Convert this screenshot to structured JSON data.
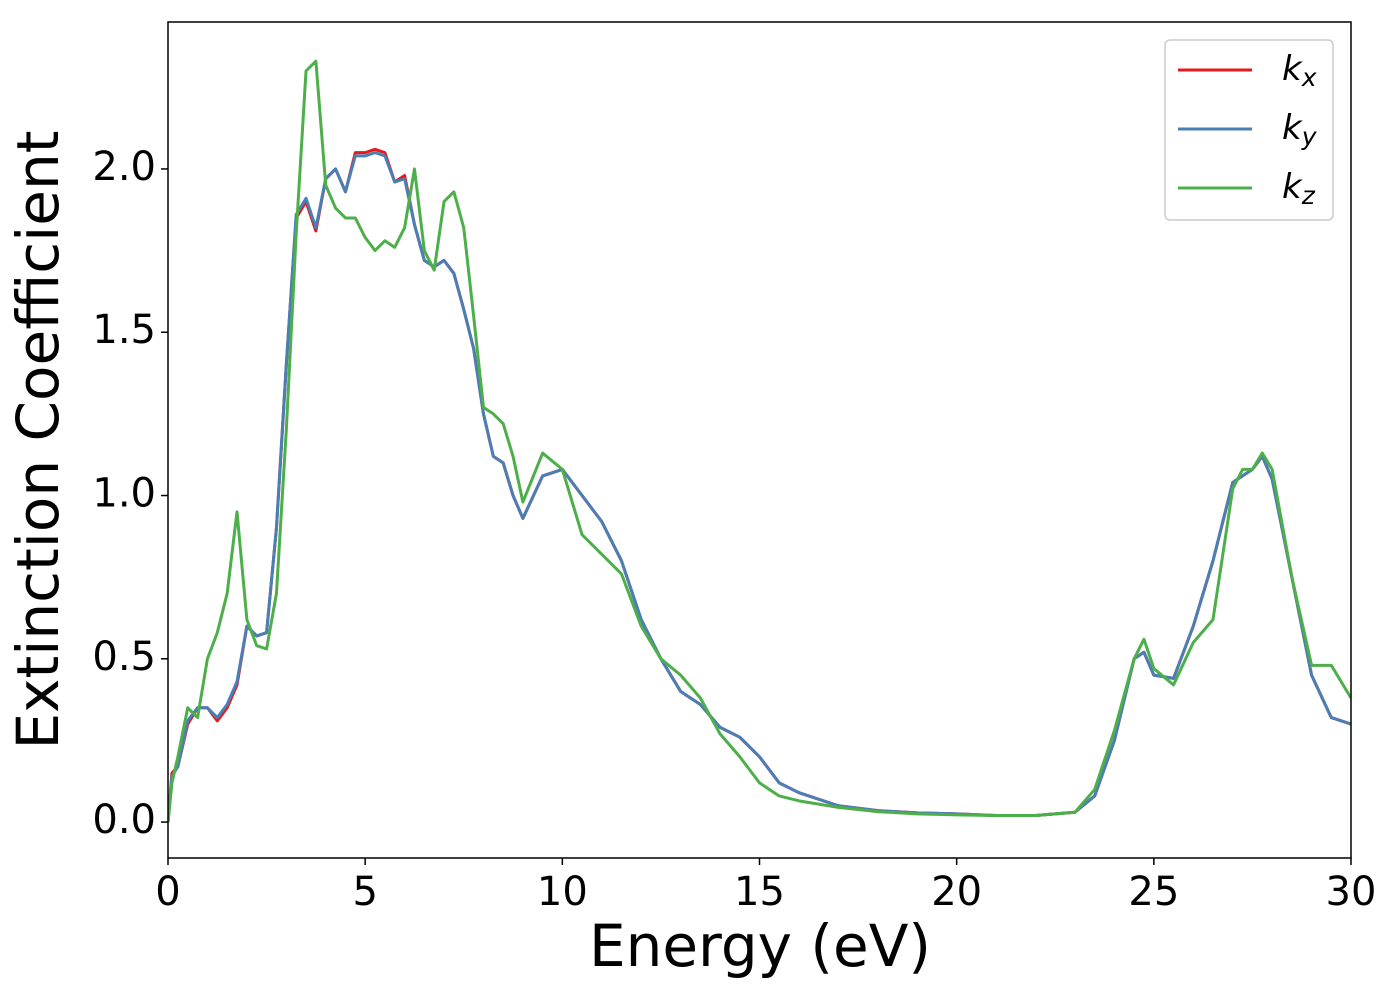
{
  "chart_data": {
    "type": "line",
    "xlabel": "Energy (eV)",
    "ylabel": "Extinction Coefficient",
    "x": [
      0,
      0.1,
      0.25,
      0.5,
      0.75,
      1,
      1.25,
      1.5,
      1.75,
      2,
      2.25,
      2.5,
      2.75,
      3,
      3.25,
      3.5,
      3.75,
      4,
      4.25,
      4.5,
      4.75,
      5,
      5.25,
      5.5,
      5.75,
      6,
      6.25,
      6.5,
      6.75,
      7,
      7.25,
      7.5,
      7.75,
      8,
      8.25,
      8.5,
      8.75,
      9,
      9.5,
      10,
      10.5,
      11,
      11.5,
      12,
      12.5,
      13,
      13.5,
      14,
      14.5,
      15,
      15.5,
      16,
      17,
      18,
      19,
      20,
      21,
      22,
      23,
      23.5,
      24,
      24.5,
      24.75,
      25,
      25.5,
      26,
      26.5,
      27,
      27.25,
      27.5,
      27.75,
      28,
      28.5,
      29,
      29.5,
      30
    ],
    "series": [
      {
        "name": "kx",
        "color": "#e41a1c",
        "values": [
          0,
          0.15,
          0.17,
          0.3,
          0.35,
          0.35,
          0.31,
          0.35,
          0.42,
          0.6,
          0.57,
          0.58,
          0.9,
          1.4,
          1.85,
          1.9,
          1.81,
          1.97,
          2.0,
          1.93,
          2.05,
          2.05,
          2.06,
          2.05,
          1.96,
          1.98,
          1.83,
          1.72,
          1.7,
          1.72,
          1.68,
          1.57,
          1.45,
          1.25,
          1.12,
          1.1,
          1.0,
          0.93,
          1.06,
          1.08,
          1.0,
          0.92,
          0.8,
          0.62,
          0.5,
          0.4,
          0.36,
          0.29,
          0.26,
          0.2,
          0.12,
          0.09,
          0.05,
          0.035,
          0.028,
          0.025,
          0.02,
          0.02,
          0.03,
          0.08,
          0.25,
          0.5,
          0.52,
          0.45,
          0.44,
          0.6,
          0.8,
          1.04,
          1.06,
          1.08,
          1.12,
          1.05,
          0.75,
          0.45,
          0.32,
          0.3
        ]
      },
      {
        "name": "ky",
        "color": "#4a7fb5",
        "values": [
          0,
          0.14,
          0.17,
          0.31,
          0.35,
          0.35,
          0.32,
          0.36,
          0.43,
          0.6,
          0.57,
          0.58,
          0.9,
          1.4,
          1.86,
          1.91,
          1.82,
          1.97,
          2.0,
          1.93,
          2.04,
          2.04,
          2.05,
          2.04,
          1.96,
          1.97,
          1.83,
          1.72,
          1.7,
          1.72,
          1.68,
          1.57,
          1.45,
          1.25,
          1.12,
          1.1,
          1.0,
          0.93,
          1.06,
          1.08,
          1.0,
          0.92,
          0.8,
          0.62,
          0.5,
          0.4,
          0.36,
          0.29,
          0.26,
          0.2,
          0.12,
          0.09,
          0.05,
          0.035,
          0.028,
          0.025,
          0.02,
          0.02,
          0.03,
          0.08,
          0.25,
          0.5,
          0.52,
          0.45,
          0.44,
          0.6,
          0.8,
          1.04,
          1.06,
          1.08,
          1.12,
          1.05,
          0.75,
          0.45,
          0.32,
          0.3
        ]
      },
      {
        "name": "kz",
        "color": "#4daf4a",
        "values": [
          0,
          0.12,
          0.2,
          0.35,
          0.32,
          0.5,
          0.58,
          0.7,
          0.95,
          0.62,
          0.54,
          0.53,
          0.7,
          1.2,
          1.8,
          2.3,
          2.33,
          1.95,
          1.88,
          1.85,
          1.85,
          1.79,
          1.75,
          1.78,
          1.76,
          1.82,
          2.0,
          1.75,
          1.69,
          1.9,
          1.93,
          1.82,
          1.55,
          1.27,
          1.25,
          1.22,
          1.12,
          0.98,
          1.13,
          1.08,
          0.88,
          0.82,
          0.76,
          0.6,
          0.5,
          0.45,
          0.38,
          0.27,
          0.2,
          0.12,
          0.08,
          0.065,
          0.045,
          0.032,
          0.025,
          0.022,
          0.02,
          0.02,
          0.03,
          0.1,
          0.28,
          0.5,
          0.56,
          0.47,
          0.42,
          0.55,
          0.62,
          1.02,
          1.08,
          1.08,
          1.13,
          1.08,
          0.75,
          0.48,
          0.48,
          0.38
        ]
      }
    ],
    "xlim": [
      0,
      30
    ],
    "xticks": [
      0,
      5,
      10,
      15,
      20,
      25,
      30
    ],
    "ylim": [
      -0.11,
      2.45
    ],
    "yticks": [
      {
        "value": 0,
        "label": "0.0"
      },
      0.5,
      {
        "value": 1,
        "label": "1.0"
      },
      1.5,
      {
        "value": 2,
        "label": "2.0"
      }
    ],
    "legend": "upper right",
    "grid": false
  }
}
